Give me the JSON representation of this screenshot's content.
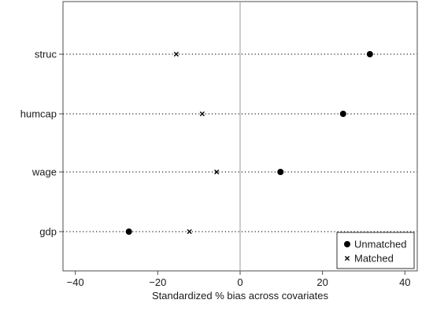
{
  "chart_data": {
    "type": "scatter",
    "title": "",
    "xlabel": "Standardized % bias across covariates",
    "ylabel": "",
    "xlim": [
      -43,
      43
    ],
    "xticks": [
      -40,
      -20,
      0,
      20,
      40
    ],
    "xtick_labels": [
      "−40",
      "−20",
      "0",
      "20",
      "40"
    ],
    "categories": [
      "struc",
      "humcap",
      "wage",
      "gdp"
    ],
    "grid": "dotted horizontal lines at each covariate",
    "reference_line_x": 0,
    "legend_position": "bottom-right",
    "series": [
      {
        "name": "Unmatched",
        "marker": "filled-circle",
        "values": [
          31.5,
          25.0,
          9.8,
          -27.0
        ]
      },
      {
        "name": "Matched",
        "marker": "x",
        "values": [
          -15.5,
          -9.2,
          -5.7,
          -12.3
        ]
      }
    ],
    "colors": {
      "marker": "#000000",
      "axis": "#4d4d4d",
      "reference_line": "#999999"
    }
  }
}
